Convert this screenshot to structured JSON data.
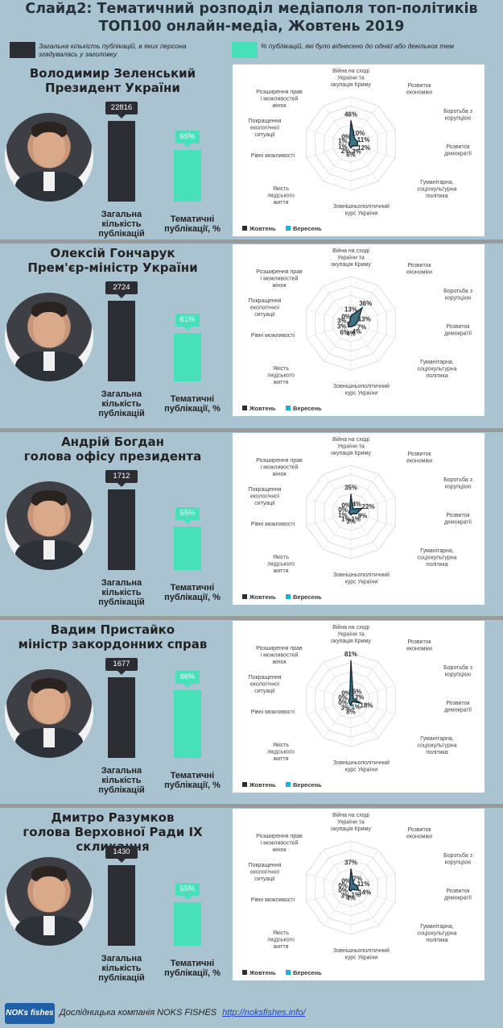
{
  "header": {
    "title_line1": "Слайд2: Тематичний розподіл медіаполя топ-політиків",
    "title_line2": "ТОП100 онлайн-медіа, Жовтень 2019"
  },
  "legend": {
    "total_label": "Загальна кількість публікацій, в яких персона згадувалась у заголовку",
    "thematic_label": "% публікацій, які було віднесено до однієї або декількох тем",
    "total_color": "#2c2d33",
    "thematic_color": "#47e0b8"
  },
  "bar_labels": {
    "total": "Загальна кількість публікацій",
    "thematic": "Тематичні публікації, %"
  },
  "radar_axes": [
    "Війна на сході України та окупація Криму",
    "Розвиток економіки",
    "Боротьба з корупцією",
    "Розвиток демократії",
    "Гуманітарна, соціокультурна політика",
    "Зовнішньополітичний курс України",
    "Якість людського життя",
    "Рівні можливості",
    "Покращення екологічної ситуації",
    "Розширення прав і можливостей жінок"
  ],
  "radar_legend": {
    "oct": "Жовтень",
    "sep": "Вересень"
  },
  "radar_colors": {
    "oct": "#2c2d33",
    "sep": "#1fb0d8"
  },
  "chart_data": [
    {
      "type": "radar",
      "person": {
        "name": "Володимир Зеленський",
        "role": "Президент України"
      },
      "total_publications": 22816,
      "thematic_percent": "65%",
      "thematic_value": 65,
      "series": [
        {
          "name": "Жовтень",
          "values": [
            46,
            10,
            11,
            12,
            3,
            6,
            2,
            1,
            1,
            0
          ]
        },
        {
          "name": "Вересень",
          "values": [
            40,
            8,
            12,
            10,
            3,
            5,
            2,
            1,
            1,
            0
          ]
        }
      ],
      "labels": [
        "46%",
        "10%",
        "11%",
        "12%",
        "3%",
        "6%",
        "2%",
        "1%",
        "1%",
        "0%"
      ]
    },
    {
      "type": "radar",
      "person": {
        "name": "Олексій Гончарук",
        "role": "Прем'єр-міністр України"
      },
      "total_publications": 2724,
      "thematic_percent": "61%",
      "thematic_value": 61,
      "series": [
        {
          "name": "Жовтень",
          "values": [
            13,
            36,
            13,
            7,
            4,
            4,
            6,
            3,
            3,
            0
          ]
        },
        {
          "name": "Вересень",
          "values": [
            10,
            38,
            11,
            6,
            4,
            3,
            5,
            3,
            3,
            0
          ]
        }
      ],
      "labels": [
        "13%",
        "36%",
        "13%",
        "7%",
        "4%",
        "4%",
        "6%",
        "3%",
        "3%",
        "0%"
      ]
    },
    {
      "type": "radar",
      "person": {
        "name": "Андрій Богдан",
        "role": "голова офісу президента"
      },
      "total_publications": 1712,
      "thematic_percent": "55%",
      "thematic_value": 55,
      "series": [
        {
          "name": "Жовтень",
          "values": [
            35,
            4,
            22,
            9,
            1,
            3,
            1,
            1,
            0,
            0
          ]
        },
        {
          "name": "Вересень",
          "values": [
            28,
            5,
            20,
            8,
            1,
            2,
            1,
            1,
            0,
            0
          ]
        }
      ],
      "labels": [
        "35%",
        "4%",
        "22%",
        "9%",
        "1%",
        "3%",
        "1%",
        "1%",
        "0%",
        "0%"
      ]
    },
    {
      "type": "radar",
      "person": {
        "name": "Вадим Пристайко",
        "role": "міністр закордонних справ"
      },
      "total_publications": 1677,
      "thematic_percent": "86%",
      "thematic_value": 86,
      "series": [
        {
          "name": "Жовтень",
          "values": [
            81,
            5,
            2,
            18,
            1,
            8,
            3,
            0,
            0,
            0
          ]
        },
        {
          "name": "Вересень",
          "values": [
            70,
            4,
            3,
            20,
            1,
            10,
            3,
            0,
            0,
            0
          ]
        }
      ],
      "labels": [
        "81%",
        "5%",
        "2%",
        "18%",
        "1%",
        "8%",
        "3%",
        "0%",
        "0%",
        "0%"
      ]
    },
    {
      "type": "radar",
      "person": {
        "name": "Дмитро Разумков",
        "role": "голова Верховної Ради IX скликання"
      },
      "total_publications": 1430,
      "thematic_percent": "55%",
      "thematic_value": 55,
      "series": [
        {
          "name": "Жовтень",
          "values": [
            37,
            7,
            11,
            14,
            1,
            4,
            3,
            0,
            0,
            0
          ]
        },
        {
          "name": "Вересень",
          "values": [
            30,
            6,
            10,
            12,
            1,
            3,
            3,
            0,
            0,
            0
          ]
        }
      ],
      "labels": [
        "37%",
        "7%",
        "11%",
        "14%",
        "1%",
        "4%",
        "3%",
        "0%",
        "0%",
        "0%"
      ]
    }
  ],
  "footer": {
    "logo": "NOKs fishes",
    "text": "Дослідницька компанія NOKS FISHES",
    "link": "http://noksfishes.info/"
  }
}
